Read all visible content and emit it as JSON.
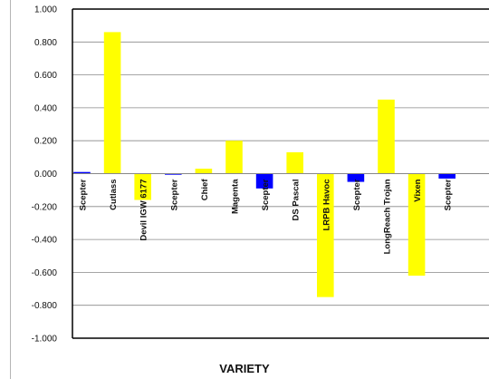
{
  "chart_data": {
    "type": "bar",
    "xlabel": "VARIETY",
    "ylabel": "",
    "ylim": [
      -1.0,
      1.0
    ],
    "yticks": [
      "1.000",
      "0.800",
      "0.600",
      "0.400",
      "0.200",
      "0.000",
      "-0.200",
      "-0.400",
      "-0.600",
      "-0.800",
      "-1.000"
    ],
    "grid": true,
    "categories": [
      "Scepter",
      "Cutlass",
      "Devil IGW 6177",
      "Scepter",
      "Chief",
      "Magenta",
      "Scepter",
      "DS Pascal",
      "LRPB Havoc",
      "Scepter",
      "LongReach Trojan",
      "Vixen",
      "Scepter"
    ],
    "values": [
      0.01,
      0.86,
      -0.16,
      -0.005,
      0.03,
      0.2,
      -0.09,
      0.13,
      -0.75,
      -0.05,
      0.45,
      -0.62,
      -0.03
    ],
    "bar_colors": [
      "#0000ff",
      "#ffff00",
      "#ffff00",
      "#0000ff",
      "#ffff00",
      "#ffff00",
      "#0000ff",
      "#ffff00",
      "#ffff00",
      "#0000ff",
      "#ffff00",
      "#ffff00",
      "#0000ff"
    ],
    "colors": {
      "check": "#0000ff",
      "variety": "#ffff00",
      "grid": "#888888",
      "axis": "#000000"
    }
  }
}
